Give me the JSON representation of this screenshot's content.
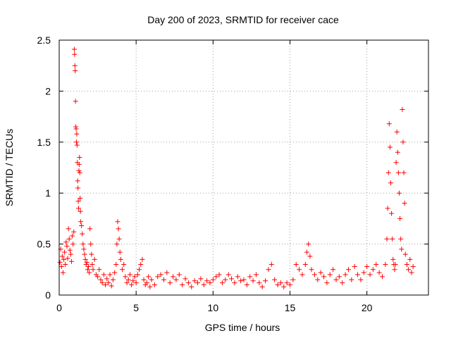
{
  "chart_data": {
    "type": "scatter",
    "title": "Day 200 of 2023, SRMTID for receiver cace",
    "xlabel": "GPS time / hours",
    "ylabel": "SRMTID / TECUs",
    "xlim": [
      0,
      24
    ],
    "ylim": [
      0,
      2.5
    ],
    "x_ticks": [
      0,
      5,
      10,
      15,
      20
    ],
    "x_tick_labels": [
      "0",
      "5",
      "10",
      "15",
      "20"
    ],
    "y_ticks": [
      0,
      0.5,
      1,
      1.5,
      2,
      2.5
    ],
    "y_tick_labels": [
      "0",
      "0.5",
      "1",
      "1.5",
      "2",
      "2.5"
    ],
    "grid": true,
    "marker": "+",
    "marker_color": "#ff0000",
    "series": [
      {
        "name": "SRMTID",
        "points": [
          [
            0.05,
            0.32
          ],
          [
            0.1,
            0.45
          ],
          [
            0.15,
            0.28
          ],
          [
            0.2,
            0.38
          ],
          [
            0.25,
            0.22
          ],
          [
            0.3,
            0.35
          ],
          [
            0.35,
            0.42
          ],
          [
            0.4,
            0.3
          ],
          [
            0.45,
            0.52
          ],
          [
            0.5,
            0.48
          ],
          [
            0.55,
            0.36
          ],
          [
            0.6,
            0.65
          ],
          [
            0.65,
            0.55
          ],
          [
            0.7,
            0.44
          ],
          [
            0.75,
            0.4
          ],
          [
            0.8,
            0.33
          ],
          [
            0.85,
            0.58
          ],
          [
            0.9,
            0.5
          ],
          [
            0.95,
            0.62
          ],
          [
            0.98,
            2.41
          ],
          [
            1.0,
            2.36
          ],
          [
            1.02,
            2.25
          ],
          [
            1.04,
            2.2
          ],
          [
            1.06,
            1.9
          ],
          [
            1.08,
            1.65
          ],
          [
            1.1,
            1.63
          ],
          [
            1.12,
            1.5
          ],
          [
            1.14,
            1.58
          ],
          [
            1.16,
            1.47
          ],
          [
            1.18,
            1.3
          ],
          [
            1.2,
            1.12
          ],
          [
            1.22,
            1.05
          ],
          [
            1.24,
            0.92
          ],
          [
            1.26,
            0.85
          ],
          [
            1.28,
            1.22
          ],
          [
            1.3,
            1.28
          ],
          [
            1.32,
            1.35
          ],
          [
            1.34,
            1.2
          ],
          [
            1.36,
            0.95
          ],
          [
            1.38,
            0.82
          ],
          [
            1.4,
            0.72
          ],
          [
            1.45,
            0.68
          ],
          [
            1.5,
            0.6
          ],
          [
            1.55,
            0.5
          ],
          [
            1.6,
            0.45
          ],
          [
            1.65,
            0.4
          ],
          [
            1.7,
            0.35
          ],
          [
            1.75,
            0.3
          ],
          [
            1.8,
            0.32
          ],
          [
            1.85,
            0.25
          ],
          [
            1.9,
            0.28
          ],
          [
            1.95,
            0.22
          ],
          [
            2.0,
            0.65
          ],
          [
            2.05,
            0.5
          ],
          [
            2.1,
            0.4
          ],
          [
            2.15,
            0.3
          ],
          [
            2.2,
            0.25
          ],
          [
            2.3,
            0.35
          ],
          [
            2.4,
            0.2
          ],
          [
            2.5,
            0.18
          ],
          [
            2.6,
            0.25
          ],
          [
            2.7,
            0.15
          ],
          [
            2.8,
            0.12
          ],
          [
            2.9,
            0.2
          ],
          [
            3.0,
            0.1
          ],
          [
            3.1,
            0.16
          ],
          [
            3.2,
            0.12
          ],
          [
            3.3,
            0.2
          ],
          [
            3.4,
            0.09
          ],
          [
            3.5,
            0.15
          ],
          [
            3.6,
            0.22
          ],
          [
            3.7,
            0.3
          ],
          [
            3.75,
            0.5
          ],
          [
            3.8,
            0.72
          ],
          [
            3.85,
            0.65
          ],
          [
            3.9,
            0.55
          ],
          [
            3.95,
            0.42
          ],
          [
            4.0,
            0.35
          ],
          [
            4.1,
            0.25
          ],
          [
            4.2,
            0.3
          ],
          [
            4.3,
            0.18
          ],
          [
            4.4,
            0.12
          ],
          [
            4.5,
            0.15
          ],
          [
            4.6,
            0.2
          ],
          [
            4.7,
            0.1
          ],
          [
            4.8,
            0.14
          ],
          [
            4.9,
            0.18
          ],
          [
            5.0,
            0.12
          ],
          [
            5.1,
            0.2
          ],
          [
            5.2,
            0.25
          ],
          [
            5.3,
            0.3
          ],
          [
            5.4,
            0.35
          ],
          [
            5.5,
            0.15
          ],
          [
            5.6,
            0.1
          ],
          [
            5.7,
            0.12
          ],
          [
            5.8,
            0.18
          ],
          [
            5.9,
            0.08
          ],
          [
            6.0,
            0.15
          ],
          [
            6.2,
            0.1
          ],
          [
            6.4,
            0.18
          ],
          [
            6.6,
            0.2
          ],
          [
            6.8,
            0.15
          ],
          [
            7.0,
            0.22
          ],
          [
            7.2,
            0.12
          ],
          [
            7.4,
            0.18
          ],
          [
            7.6,
            0.15
          ],
          [
            7.8,
            0.2
          ],
          [
            8.0,
            0.1
          ],
          [
            8.2,
            0.16
          ],
          [
            8.4,
            0.12
          ],
          [
            8.6,
            0.08
          ],
          [
            8.8,
            0.14
          ],
          [
            9.0,
            0.12
          ],
          [
            9.2,
            0.16
          ],
          [
            9.4,
            0.1
          ],
          [
            9.6,
            0.14
          ],
          [
            9.8,
            0.12
          ],
          [
            10.0,
            0.15
          ],
          [
            10.2,
            0.18
          ],
          [
            10.4,
            0.2
          ],
          [
            10.6,
            0.12
          ],
          [
            10.8,
            0.15
          ],
          [
            11.0,
            0.2
          ],
          [
            11.2,
            0.16
          ],
          [
            11.4,
            0.12
          ],
          [
            11.6,
            0.18
          ],
          [
            11.8,
            0.14
          ],
          [
            12.0,
            0.15
          ],
          [
            12.2,
            0.1
          ],
          [
            12.4,
            0.18
          ],
          [
            12.6,
            0.14
          ],
          [
            12.8,
            0.2
          ],
          [
            13.0,
            0.12
          ],
          [
            13.2,
            0.08
          ],
          [
            13.4,
            0.14
          ],
          [
            13.6,
            0.25
          ],
          [
            13.8,
            0.3
          ],
          [
            14.0,
            0.15
          ],
          [
            14.2,
            0.1
          ],
          [
            14.4,
            0.12
          ],
          [
            14.6,
            0.08
          ],
          [
            14.8,
            0.12
          ],
          [
            15.0,
            0.1
          ],
          [
            15.2,
            0.15
          ],
          [
            15.4,
            0.3
          ],
          [
            15.6,
            0.25
          ],
          [
            15.8,
            0.2
          ],
          [
            16.0,
            0.3
          ],
          [
            16.1,
            0.42
          ],
          [
            16.2,
            0.5
          ],
          [
            16.3,
            0.38
          ],
          [
            16.4,
            0.25
          ],
          [
            16.6,
            0.2
          ],
          [
            16.8,
            0.15
          ],
          [
            17.0,
            0.22
          ],
          [
            17.2,
            0.18
          ],
          [
            17.4,
            0.12
          ],
          [
            17.6,
            0.2
          ],
          [
            17.8,
            0.25
          ],
          [
            18.0,
            0.15
          ],
          [
            18.2,
            0.18
          ],
          [
            18.4,
            0.12
          ],
          [
            18.6,
            0.2
          ],
          [
            18.8,
            0.25
          ],
          [
            19.0,
            0.15
          ],
          [
            19.2,
            0.28
          ],
          [
            19.4,
            0.2
          ],
          [
            19.6,
            0.15
          ],
          [
            19.8,
            0.22
          ],
          [
            20.0,
            0.28
          ],
          [
            20.2,
            0.2
          ],
          [
            20.4,
            0.25
          ],
          [
            20.6,
            0.3
          ],
          [
            20.8,
            0.22
          ],
          [
            21.0,
            0.18
          ],
          [
            21.2,
            0.3
          ],
          [
            21.3,
            0.55
          ],
          [
            21.35,
            0.85
          ],
          [
            21.4,
            1.2
          ],
          [
            21.45,
            1.68
          ],
          [
            21.5,
            1.45
          ],
          [
            21.55,
            1.1
          ],
          [
            21.6,
            0.8
          ],
          [
            21.65,
            0.55
          ],
          [
            21.7,
            0.35
          ],
          [
            21.75,
            0.3
          ],
          [
            21.8,
            0.25
          ],
          [
            21.85,
            0.3
          ],
          [
            21.9,
            1.3
          ],
          [
            21.95,
            1.6
          ],
          [
            22.0,
            1.4
          ],
          [
            22.05,
            1.2
          ],
          [
            22.1,
            1.0
          ],
          [
            22.15,
            0.75
          ],
          [
            22.2,
            0.55
          ],
          [
            22.25,
            0.45
          ],
          [
            22.3,
            1.82
          ],
          [
            22.35,
            1.5
          ],
          [
            22.4,
            1.2
          ],
          [
            22.45,
            0.9
          ],
          [
            22.5,
            0.4
          ],
          [
            22.6,
            0.3
          ],
          [
            22.7,
            0.25
          ],
          [
            22.8,
            0.35
          ],
          [
            22.9,
            0.22
          ],
          [
            23.0,
            0.28
          ]
        ]
      }
    ]
  }
}
